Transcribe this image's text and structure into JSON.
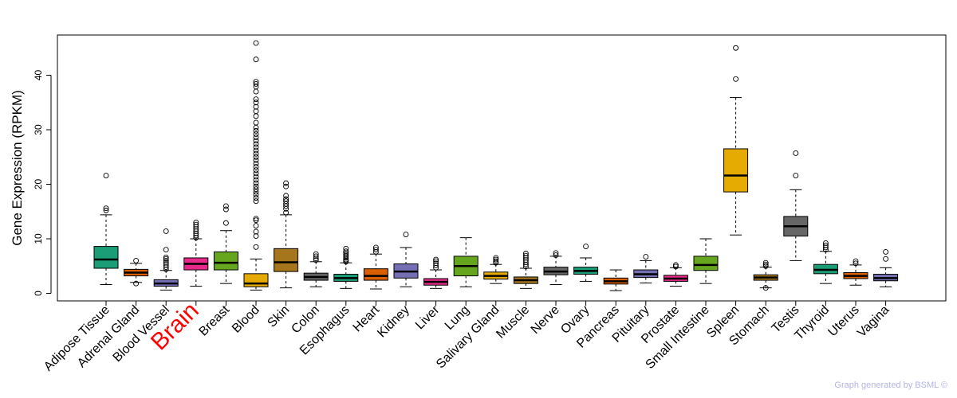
{
  "chart_data": {
    "type": "box",
    "ylabel": "Gene Expression (RPKM)",
    "y_ticks": [
      0,
      10,
      20,
      30,
      40
    ],
    "ylim": [
      -1,
      47
    ],
    "highlight_category": "Brain",
    "highlight_color": "#ff0000",
    "categories": [
      {
        "name": "Adipose Tissue",
        "color": "#1b9e77",
        "min": 1.6,
        "q1": 4.6,
        "median": 6.2,
        "q3": 8.6,
        "max": 14.4,
        "outliers": [
          15.2,
          15.6,
          21.6
        ]
      },
      {
        "name": "Adrenal Gland",
        "color": "#d95f02",
        "min": 2.0,
        "q1": 3.2,
        "median": 3.8,
        "q3": 4.4,
        "max": 5.5,
        "outliers": [
          1.8,
          6.0
        ]
      },
      {
        "name": "Blood Vessel",
        "color": "#7570b3",
        "min": 0.6,
        "q1": 1.3,
        "median": 1.8,
        "q3": 2.5,
        "max": 4.2,
        "outliers": [
          4.4,
          4.8,
          5.2,
          5.6,
          6.0,
          6.3,
          6.6,
          8.0,
          11.4
        ]
      },
      {
        "name": "Brain",
        "color": "#e7298a",
        "min": 1.3,
        "q1": 4.3,
        "median": 5.4,
        "q3": 6.5,
        "max": 10.0,
        "outliers": [
          10.2,
          10.6,
          11.0,
          11.4,
          11.8,
          12.2,
          12.6,
          13.0
        ]
      },
      {
        "name": "Breast",
        "color": "#66a61e",
        "min": 1.8,
        "q1": 4.3,
        "median": 5.6,
        "q3": 7.6,
        "max": 11.5,
        "outliers": [
          12.9,
          15.4,
          16.0
        ]
      },
      {
        "name": "Blood",
        "color": "#e6ab02",
        "min": 0.6,
        "q1": 1.2,
        "median": 1.8,
        "q3": 3.6,
        "max": 6.3,
        "outliers": [
          8.5,
          10.5,
          11.3,
          12.4,
          13.4,
          13.7,
          16.9,
          17.5,
          18.1,
          18.6,
          19.1,
          19.6,
          20.2,
          20.8,
          21.4,
          22.0,
          22.6,
          23.2,
          23.8,
          24.4,
          25.0,
          25.6,
          26.2,
          26.8,
          27.4,
          28.0,
          28.6,
          29.2,
          29.8,
          30.4,
          31.3,
          32.5,
          33.4,
          34.2,
          35.0,
          35.6,
          37.0,
          37.9,
          38.4,
          38.8,
          42.9,
          45.9
        ]
      },
      {
        "name": "Skin",
        "color": "#a6761d",
        "min": 1.0,
        "q1": 4.0,
        "median": 5.7,
        "q3": 8.2,
        "max": 14.4,
        "outliers": [
          14.8,
          15.5,
          16.0,
          16.4,
          16.9,
          17.3,
          17.9,
          19.6,
          20.2
        ]
      },
      {
        "name": "Colon",
        "color": "#666666",
        "min": 1.2,
        "q1": 2.4,
        "median": 3.0,
        "q3": 3.7,
        "max": 5.8,
        "outliers": [
          6.1,
          6.4,
          6.8,
          7.2
        ]
      },
      {
        "name": "Esophagus",
        "color": "#1b9e77",
        "min": 0.9,
        "q1": 2.2,
        "median": 2.8,
        "q3": 3.5,
        "max": 5.6,
        "outliers": [
          5.8,
          6.0,
          6.2,
          6.5,
          6.8,
          7.1,
          7.4,
          7.7,
          8.2
        ]
      },
      {
        "name": "Heart",
        "color": "#d95f02",
        "min": 0.8,
        "q1": 2.4,
        "median": 3.2,
        "q3": 4.5,
        "max": 7.2,
        "outliers": [
          7.6,
          8.0,
          8.4
        ]
      },
      {
        "name": "Kidney",
        "color": "#7570b3",
        "min": 1.2,
        "q1": 2.8,
        "median": 4.0,
        "q3": 5.4,
        "max": 8.4,
        "outliers": [
          10.8
        ]
      },
      {
        "name": "Liver",
        "color": "#e7298a",
        "min": 0.9,
        "q1": 1.5,
        "median": 2.1,
        "q3": 2.7,
        "max": 4.3,
        "outliers": [
          4.7,
          5.1,
          5.5,
          5.9,
          6.2
        ]
      },
      {
        "name": "Lung",
        "color": "#66a61e",
        "min": 1.2,
        "q1": 3.2,
        "median": 5.0,
        "q3": 6.8,
        "max": 10.2,
        "outliers": []
      },
      {
        "name": "Salivary Gland",
        "color": "#e6ab02",
        "min": 1.8,
        "q1": 2.6,
        "median": 3.2,
        "q3": 3.9,
        "max": 5.3,
        "outliers": [
          5.6,
          5.9,
          6.2,
          6.5
        ]
      },
      {
        "name": "Muscle",
        "color": "#a6761d",
        "min": 0.9,
        "q1": 1.8,
        "median": 2.4,
        "q3": 3.0,
        "max": 4.6,
        "outliers": [
          4.9,
          5.3,
          5.7,
          6.1,
          6.5,
          6.9,
          7.3
        ]
      },
      {
        "name": "Nerve",
        "color": "#666666",
        "min": 1.6,
        "q1": 3.4,
        "median": 4.0,
        "q3": 4.8,
        "max": 6.8,
        "outliers": [
          7.0,
          7.4
        ]
      },
      {
        "name": "Ovary",
        "color": "#1b9e77",
        "min": 2.2,
        "q1": 3.5,
        "median": 4.1,
        "q3": 4.8,
        "max": 6.5,
        "outliers": [
          8.6
        ]
      },
      {
        "name": "Pancreas",
        "color": "#d95f02",
        "min": 0.5,
        "q1": 1.7,
        "median": 2.2,
        "q3": 2.8,
        "max": 4.3,
        "outliers": []
      },
      {
        "name": "Pituitary",
        "color": "#7570b3",
        "min": 1.9,
        "q1": 2.9,
        "median": 3.5,
        "q3": 4.3,
        "max": 6.0,
        "outliers": [
          6.7
        ]
      },
      {
        "name": "Prostate",
        "color": "#e7298a",
        "min": 1.3,
        "q1": 2.2,
        "median": 2.7,
        "q3": 3.3,
        "max": 4.7,
        "outliers": [
          4.9,
          5.2
        ]
      },
      {
        "name": "Small Intestine",
        "color": "#66a61e",
        "min": 1.8,
        "q1": 4.2,
        "median": 5.2,
        "q3": 6.8,
        "max": 10.0,
        "outliers": []
      },
      {
        "name": "Spleen",
        "color": "#e6ab02",
        "min": 10.7,
        "q1": 18.6,
        "median": 21.6,
        "q3": 26.5,
        "max": 35.9,
        "outliers": [
          39.3,
          45.0
        ]
      },
      {
        "name": "Stomach",
        "color": "#a6761d",
        "min": 1.0,
        "q1": 2.4,
        "median": 2.9,
        "q3": 3.4,
        "max": 4.8,
        "outliers": [
          1.0,
          5.0,
          5.3,
          5.6
        ]
      },
      {
        "name": "Testis",
        "color": "#666666",
        "min": 6.0,
        "q1": 10.5,
        "median": 12.3,
        "q3": 14.1,
        "max": 19.0,
        "outliers": [
          21.6,
          25.7
        ]
      },
      {
        "name": "Thyroid",
        "color": "#1b9e77",
        "min": 1.8,
        "q1": 3.6,
        "median": 4.3,
        "q3": 5.3,
        "max": 7.7,
        "outliers": [
          8.0,
          8.4,
          8.8,
          9.2
        ]
      },
      {
        "name": "Uterus",
        "color": "#d95f02",
        "min": 1.5,
        "q1": 2.7,
        "median": 3.2,
        "q3": 3.8,
        "max": 5.2,
        "outliers": [
          5.5,
          5.9
        ]
      },
      {
        "name": "Vagina",
        "color": "#7570b3",
        "min": 1.2,
        "q1": 2.3,
        "median": 2.8,
        "q3": 3.5,
        "max": 4.7,
        "outliers": [
          6.3,
          7.6
        ]
      }
    ]
  },
  "footer": "Graph generated by BSML ©"
}
